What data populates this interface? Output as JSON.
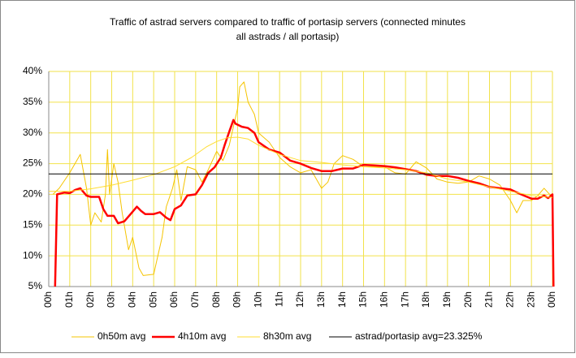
{
  "chart_data": {
    "type": "line",
    "title": [
      "Traffic of astrad servers compared to traffic of portasip servers (connected minutes",
      "all astrads / all portasip)"
    ],
    "xlim": [
      0,
      24
    ],
    "ylim": [
      5,
      40
    ],
    "grid": true,
    "grid_color": "#f2e24a",
    "legend": "bottom",
    "yticks": [
      {
        "value": 5,
        "label": "5%"
      },
      {
        "value": 10,
        "label": "10%"
      },
      {
        "value": 15,
        "label": "15%"
      },
      {
        "value": 20,
        "label": "20%"
      },
      {
        "value": 25,
        "label": "25%"
      },
      {
        "value": 30,
        "label": "30%"
      },
      {
        "value": 35,
        "label": "35%"
      },
      {
        "value": 40,
        "label": "40%"
      }
    ],
    "xticks": [
      {
        "value": 0,
        "label": "00h"
      },
      {
        "value": 1,
        "label": "01h"
      },
      {
        "value": 2,
        "label": "02h"
      },
      {
        "value": 3,
        "label": "03h"
      },
      {
        "value": 4,
        "label": "04h"
      },
      {
        "value": 5,
        "label": "05h"
      },
      {
        "value": 6,
        "label": "06h"
      },
      {
        "value": 7,
        "label": "07h"
      },
      {
        "value": 8,
        "label": "08h"
      },
      {
        "value": 9,
        "label": "09h",
        "color": "#ff0000"
      },
      {
        "value": 10,
        "label": "10h",
        "color": "#ff0000"
      },
      {
        "value": 11,
        "label": "11h"
      },
      {
        "value": 12,
        "label": "12h"
      },
      {
        "value": 13,
        "label": "13h"
      },
      {
        "value": 14,
        "label": "14h"
      },
      {
        "value": 15,
        "label": "15h"
      },
      {
        "value": 16,
        "label": "16h"
      },
      {
        "value": 17,
        "label": "17h"
      },
      {
        "value": 18,
        "label": "18h"
      },
      {
        "value": 19,
        "label": "19h"
      },
      {
        "value": 20,
        "label": "20h"
      },
      {
        "value": 21,
        "label": "21h"
      },
      {
        "value": 22,
        "label": "22h"
      },
      {
        "value": 23,
        "label": "23h"
      },
      {
        "value": 24,
        "label": "00h"
      }
    ],
    "series": [
      {
        "name": "0h50m avg",
        "color": "#f5c400",
        "width": 1,
        "x": [
          0.2,
          0.5,
          1,
          1.5,
          1.8,
          2,
          2.2,
          2.5,
          2.7,
          2.8,
          2.9,
          3.1,
          3.3,
          3.5,
          3.8,
          4,
          4.3,
          4.5,
          5,
          5.2,
          5.4,
          5.6,
          5.9,
          6.1,
          6.3,
          6.6,
          7,
          7.3,
          7.6,
          8,
          8.3,
          8.6,
          8.8,
          9,
          9.1,
          9.3,
          9.5,
          9.8,
          10,
          10.5,
          11,
          11.5,
          12,
          12.5,
          13,
          13.3,
          13.6,
          14,
          14.5,
          15,
          15.5,
          16,
          16.5,
          17,
          17.5,
          18,
          18.5,
          19,
          19.5,
          20,
          20.5,
          21,
          21.5,
          22,
          22.3,
          22.6,
          23,
          23.3,
          23.6,
          24
        ],
        "values": [
          20,
          21,
          23.5,
          26.5,
          21,
          15,
          17,
          15.5,
          20,
          27.3,
          20,
          25,
          22,
          17,
          11,
          13,
          8,
          6.8,
          7,
          10,
          13,
          18,
          21,
          24,
          19,
          24.5,
          24,
          22,
          24,
          27,
          25.5,
          28,
          31,
          34,
          37.5,
          38.3,
          35,
          33,
          30,
          28.5,
          26,
          24.5,
          23.5,
          24,
          21,
          22,
          25,
          26.3,
          25.7,
          24.5,
          24.5,
          24.5,
          23.5,
          23.3,
          25.3,
          24.3,
          22.5,
          22,
          21.8,
          22,
          23,
          22.5,
          21.5,
          19,
          17,
          19,
          19,
          19.8,
          21,
          19.5
        ]
      },
      {
        "name": "4h10m avg",
        "color": "#ff0000",
        "width": 2.5,
        "x": [
          0.3,
          0.4,
          0.75,
          1,
          1.25,
          1.5,
          1.8,
          2,
          2.4,
          2.6,
          2.8,
          3.1,
          3.3,
          3.6,
          3.9,
          4.2,
          4.4,
          4.6,
          5,
          5.3,
          5.6,
          5.8,
          6,
          6.3,
          6.6,
          7,
          7.3,
          7.6,
          7.9,
          8.2,
          8.4,
          8.6,
          8.8,
          8.9,
          9.2,
          9.5,
          9.8,
          10,
          10.5,
          11,
          11.5,
          12,
          12.5,
          13,
          13.5,
          14,
          14.5,
          15,
          15.5,
          16,
          16.5,
          17,
          17.5,
          18,
          18.5,
          19,
          19.5,
          20,
          20.5,
          21,
          21.5,
          22,
          22.5,
          23,
          23.3,
          23.6,
          23.8,
          24,
          24.05
        ],
        "values": [
          5,
          20,
          20.3,
          20.2,
          20.7,
          21,
          19.8,
          19.6,
          19.6,
          17.6,
          16.5,
          16.5,
          15.3,
          15.6,
          16.8,
          18,
          17.3,
          16.8,
          16.8,
          17.1,
          16.2,
          15.8,
          17.6,
          18.2,
          19.8,
          20,
          21.5,
          23.5,
          24.4,
          26,
          28.2,
          30.2,
          32.1,
          31.5,
          31,
          30.8,
          30,
          28.5,
          27.3,
          26.8,
          25.5,
          25,
          24.3,
          23.8,
          23.8,
          24.2,
          24.2,
          24.8,
          24.7,
          24.6,
          24.4,
          24.1,
          23.8,
          23.2,
          23,
          23,
          22.7,
          22.2,
          21.8,
          21.2,
          21,
          20.8,
          20,
          19.3,
          19.3,
          19.8,
          19.4,
          20,
          5
        ]
      },
      {
        "name": "8h30m avg",
        "color": "#ffdd33",
        "width": 1,
        "x": [
          0,
          1,
          2,
          3,
          4,
          5,
          6,
          6.8,
          7.5,
          8,
          8.5,
          9,
          9.5,
          10,
          11,
          12,
          13,
          14,
          15,
          16,
          17,
          18,
          19,
          20,
          21,
          22,
          23,
          24
        ],
        "values": [
          20.5,
          20.5,
          20.9,
          21.5,
          22.3,
          23.2,
          24.5,
          26,
          27.7,
          28.6,
          29.2,
          29.3,
          29,
          28,
          26.5,
          25.5,
          25.2,
          24.8,
          24.5,
          24.3,
          24,
          23.5,
          22.5,
          22,
          21.2,
          20.5,
          19.8,
          19.5
        ]
      },
      {
        "name": "astrad/portasip avg=23.325%",
        "color": "#000000",
        "width": 1,
        "values": [
          23.325
        ]
      }
    ]
  }
}
